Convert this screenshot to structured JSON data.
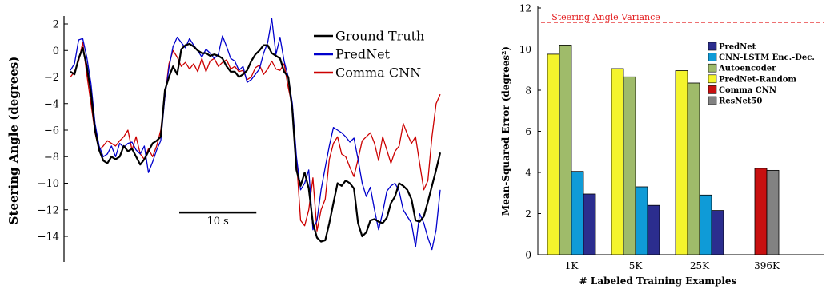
{
  "chart_data": [
    {
      "type": "line",
      "title": "",
      "xlabel": "",
      "ylabel": "Steering Angle (degrees)",
      "ylim": [
        -16,
        2.6
      ],
      "y_ticks": [
        2,
        0,
        -2,
        -4,
        -6,
        -8,
        -10,
        -12,
        -14
      ],
      "y_tick_labels": [
        "2",
        "0",
        "−2",
        "−4",
        "−6",
        "−8",
        "−10",
        "−12",
        "−14"
      ],
      "scale_bar_label": "10 s",
      "scale_bar_seconds": 10,
      "scale_bar_y": -12.2,
      "legend_position": "top-right",
      "grid": false,
      "series": [
        {
          "name": "Ground Truth",
          "color": "#000000",
          "x": [
            0,
            1,
            2,
            3,
            4,
            5,
            6,
            7,
            8,
            9,
            10,
            11,
            12,
            13,
            14,
            15,
            16,
            17,
            18,
            19,
            20,
            21,
            22,
            23,
            24,
            25,
            26,
            27,
            28,
            29,
            30,
            31,
            32,
            33,
            34,
            35,
            36,
            37,
            38,
            39,
            40,
            41,
            42,
            43,
            44,
            45,
            46,
            47,
            48,
            49,
            50,
            51,
            52,
            53,
            54,
            55,
            56,
            57,
            58,
            59,
            60,
            61,
            62,
            63,
            64,
            65,
            66,
            67,
            68,
            69,
            70,
            71,
            72,
            73,
            74,
            75,
            76,
            77,
            78,
            79,
            80,
            81,
            82,
            83,
            84,
            85,
            86,
            87,
            88,
            89,
            90
          ],
          "y": [
            -1.6,
            -1.8,
            -0.6,
            0.2,
            -1.2,
            -3.2,
            -6.0,
            -7.5,
            -8.3,
            -8.5,
            -8.0,
            -8.2,
            -8.0,
            -7.2,
            -7.6,
            -7.4,
            -8.0,
            -8.6,
            -8.2,
            -7.6,
            -7.0,
            -6.8,
            -6.5,
            -3.0,
            -2.0,
            -1.2,
            -1.8,
            0.1,
            0.4,
            0.5,
            0.3,
            0.0,
            -0.2,
            -0.2,
            -0.4,
            -0.3,
            -0.4,
            -0.6,
            -1.2,
            -1.6,
            -1.6,
            -2.0,
            -1.8,
            -1.5,
            -0.8,
            -0.3,
            0.0,
            0.4,
            0.4,
            -0.2,
            -0.4,
            -0.6,
            -1.6,
            -2.0,
            -4.5,
            -9.0,
            -10.2,
            -9.2,
            -10.4,
            -13.0,
            -14.1,
            -14.4,
            -14.3,
            -13.0,
            -11.5,
            -10.0,
            -10.2,
            -9.8,
            -10.0,
            -10.4,
            -13.0,
            -14.0,
            -13.7,
            -12.8,
            -12.7,
            -12.9,
            -13.0,
            -12.6,
            -11.5,
            -11.0,
            -10.0,
            -10.2,
            -10.5,
            -11.2,
            -12.8,
            -12.9,
            -12.5,
            -11.4,
            -10.2,
            -9.0,
            -7.7
          ]
        },
        {
          "name": "PredNet",
          "color": "#0000cc",
          "x": [
            0,
            1,
            2,
            3,
            4,
            5,
            6,
            7,
            8,
            9,
            10,
            11,
            12,
            13,
            14,
            15,
            16,
            17,
            18,
            19,
            20,
            21,
            22,
            23,
            24,
            25,
            26,
            27,
            28,
            29,
            30,
            31,
            32,
            33,
            34,
            35,
            36,
            37,
            38,
            39,
            40,
            41,
            42,
            43,
            44,
            45,
            46,
            47,
            48,
            49,
            50,
            51,
            52,
            53,
            54,
            55,
            56,
            57,
            58,
            59,
            60,
            61,
            62,
            63,
            64,
            65,
            66,
            67,
            68,
            69,
            70,
            71,
            72,
            73,
            74,
            75,
            76,
            77,
            78,
            79,
            80,
            81,
            82,
            83,
            84,
            85,
            86,
            87,
            88,
            89,
            90
          ],
          "y": [
            -1.5,
            -1.0,
            0.8,
            0.9,
            -0.5,
            -2.5,
            -5.5,
            -7.2,
            -8.0,
            -7.8,
            -7.2,
            -8.0,
            -7.0,
            -7.3,
            -7.0,
            -6.9,
            -7.5,
            -7.8,
            -7.2,
            -9.2,
            -8.4,
            -7.5,
            -6.8,
            -3.5,
            -1.3,
            0.3,
            1.0,
            0.6,
            0.2,
            0.9,
            0.4,
            0.0,
            -0.5,
            0.1,
            -0.2,
            -0.6,
            -0.3,
            1.1,
            0.3,
            -0.6,
            -0.8,
            -1.5,
            -1.2,
            -2.4,
            -2.2,
            -1.8,
            -1.4,
            -0.2,
            0.6,
            2.4,
            -0.3,
            1.0,
            -0.8,
            -2.0,
            -4.0,
            -8.0,
            -10.5,
            -10.0,
            -9.0,
            -13.5,
            -12.8,
            -10.5,
            -8.8,
            -7.2,
            -5.8,
            -6.0,
            -6.2,
            -6.5,
            -6.9,
            -6.6,
            -8.2,
            -10.0,
            -11.0,
            -10.3,
            -12.0,
            -13.5,
            -12.2,
            -10.6,
            -10.2,
            -10.0,
            -10.6,
            -12.0,
            -12.5,
            -13.0,
            -14.8,
            -12.3,
            -13.0,
            -14.1,
            -15.0,
            -13.5,
            -10.5
          ]
        },
        {
          "name": "Comma CNN",
          "color": "#cc0000",
          "x": [
            0,
            1,
            2,
            3,
            4,
            5,
            6,
            7,
            8,
            9,
            10,
            11,
            12,
            13,
            14,
            15,
            16,
            17,
            18,
            19,
            20,
            21,
            22,
            23,
            24,
            25,
            26,
            27,
            28,
            29,
            30,
            31,
            32,
            33,
            34,
            35,
            36,
            37,
            38,
            39,
            40,
            41,
            42,
            43,
            44,
            45,
            46,
            47,
            48,
            49,
            50,
            51,
            52,
            53,
            54,
            55,
            56,
            57,
            58,
            59,
            60,
            61,
            62,
            63,
            64,
            65,
            66,
            67,
            68,
            69,
            70,
            71,
            72,
            73,
            74,
            75,
            76,
            77,
            78,
            79,
            80,
            81,
            82,
            83,
            84,
            85,
            86,
            87,
            88,
            89,
            90
          ],
          "y": [
            -2.0,
            -1.6,
            -0.8,
            0.6,
            -1.8,
            -4.0,
            -6.2,
            -7.5,
            -7.2,
            -6.8,
            -7.0,
            -7.2,
            -6.8,
            -6.5,
            -6.0,
            -7.5,
            -6.5,
            -7.8,
            -8.2,
            -7.4,
            -8.0,
            -7.2,
            -6.0,
            -3.5,
            -1.0,
            0.0,
            -0.5,
            -1.2,
            -0.9,
            -1.4,
            -1.0,
            -1.6,
            -0.6,
            -1.6,
            -0.8,
            -0.6,
            -1.2,
            -0.9,
            -0.7,
            -1.4,
            -1.2,
            -1.6,
            -1.5,
            -2.2,
            -2.0,
            -1.3,
            -1.1,
            -1.8,
            -1.4,
            -0.8,
            -1.4,
            -1.5,
            -1.0,
            -2.8,
            -4.2,
            -8.2,
            -12.8,
            -13.2,
            -12.0,
            -9.6,
            -13.6,
            -12.0,
            -11.2,
            -8.2,
            -7.0,
            -6.5,
            -7.8,
            -8.0,
            -8.8,
            -9.5,
            -8.2,
            -6.8,
            -6.5,
            -6.2,
            -7.0,
            -8.3,
            -6.5,
            -7.5,
            -8.5,
            -7.6,
            -7.2,
            -5.5,
            -6.3,
            -7.0,
            -6.5,
            -8.5,
            -10.5,
            -9.8,
            -6.5,
            -4.0,
            -3.3
          ]
        }
      ]
    },
    {
      "type": "bar",
      "title": "",
      "xlabel": "# Labeled Training Examples",
      "ylabel": "Mean-Squared Error (degrees²)",
      "ylim": [
        0,
        12
      ],
      "y_ticks": [
        0,
        2,
        4,
        6,
        8,
        10,
        12
      ],
      "categories": [
        "1K",
        "5K",
        "25K",
        "396K"
      ],
      "grid": false,
      "legend_position": "top-right",
      "reference_line": {
        "label": "Steering Angle Variance",
        "value": 11.3,
        "color": "#e31a1c"
      },
      "series": [
        {
          "name": "PredNet",
          "color": "#2b2d8e",
          "values": [
            2.95,
            2.4,
            2.15,
            null
          ]
        },
        {
          "name": "CNN-LSTM Enc.-Dec.",
          "color": "#0f9bd7",
          "values": [
            4.05,
            3.3,
            2.9,
            null
          ]
        },
        {
          "name": "Autoencoder",
          "color": "#9fbb6a",
          "values": [
            10.2,
            8.65,
            8.35,
            null
          ]
        },
        {
          "name": "PredNet-Random",
          "color": "#f4f42c",
          "values": [
            9.75,
            9.05,
            8.95,
            null
          ]
        },
        {
          "name": "Comma CNN",
          "color": "#c81010",
          "values": [
            null,
            null,
            null,
            4.2
          ]
        },
        {
          "name": "ResNet50",
          "color": "#828282",
          "values": [
            null,
            null,
            null,
            4.1
          ]
        }
      ],
      "bar_order": {
        "1K": [
          "PredNet-Random",
          "Autoencoder",
          "CNN-LSTM Enc.-Dec.",
          "PredNet"
        ],
        "5K": [
          "PredNet-Random",
          "Autoencoder",
          "CNN-LSTM Enc.-Dec.",
          "PredNet"
        ],
        "25K": [
          "PredNet-Random",
          "Autoencoder",
          "CNN-LSTM Enc.-Dec.",
          "PredNet"
        ],
        "396K": [
          "Comma CNN",
          "ResNet50"
        ]
      }
    }
  ]
}
